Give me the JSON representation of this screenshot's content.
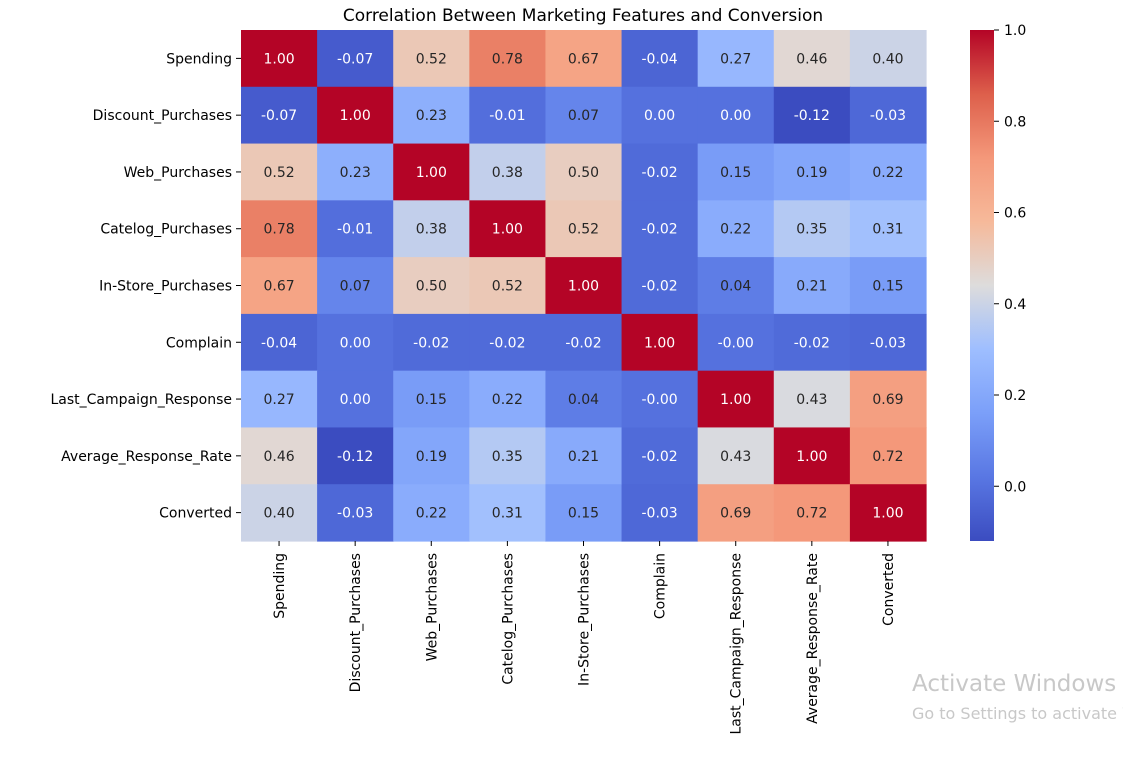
{
  "chart_data": {
    "type": "heatmap",
    "title": "Correlation Between Marketing Features and Conversion",
    "row_labels": [
      "Spending",
      "Discount_Purchases",
      "Web_Purchases",
      "Catelog_Purchases",
      "In-Store_Purchases",
      "Complain",
      "Last_Campaign_Response",
      "Average_Response_Rate",
      "Converted"
    ],
    "col_labels": [
      "Spending",
      "Discount_Purchases",
      "Web_Purchases",
      "Catelog_Purchases",
      "In-Store_Purchases",
      "Complain",
      "Last_Campaign_Response",
      "Average_Response_Rate",
      "Converted"
    ],
    "values": [
      [
        1.0,
        -0.07,
        0.52,
        0.78,
        0.67,
        -0.04,
        0.27,
        0.46,
        0.4
      ],
      [
        -0.07,
        1.0,
        0.23,
        -0.01,
        0.07,
        0.0,
        0.0,
        -0.12,
        -0.03
      ],
      [
        0.52,
        0.23,
        1.0,
        0.38,
        0.5,
        -0.02,
        0.15,
        0.19,
        0.22
      ],
      [
        0.78,
        -0.01,
        0.38,
        1.0,
        0.52,
        -0.02,
        0.22,
        0.35,
        0.31
      ],
      [
        0.67,
        0.07,
        0.5,
        0.52,
        1.0,
        -0.02,
        0.04,
        0.21,
        0.15
      ],
      [
        -0.04,
        0.0,
        -0.02,
        -0.02,
        -0.02,
        1.0,
        -0.0,
        -0.02,
        -0.03
      ],
      [
        0.27,
        0.0,
        0.15,
        0.22,
        0.04,
        -0.0,
        1.0,
        0.43,
        0.69
      ],
      [
        0.46,
        -0.12,
        0.19,
        0.35,
        0.21,
        -0.02,
        0.43,
        1.0,
        0.72
      ],
      [
        0.4,
        -0.03,
        0.22,
        0.31,
        0.15,
        -0.03,
        0.69,
        0.72,
        1.0
      ]
    ],
    "value_labels": [
      [
        "1.00",
        "-0.07",
        "0.52",
        "0.78",
        "0.67",
        "-0.04",
        "0.27",
        "0.46",
        "0.40"
      ],
      [
        "-0.07",
        "1.00",
        "0.23",
        "-0.01",
        "0.07",
        "0.00",
        "0.00",
        "-0.12",
        "-0.03"
      ],
      [
        "0.52",
        "0.23",
        "1.00",
        "0.38",
        "0.50",
        "-0.02",
        "0.15",
        "0.19",
        "0.22"
      ],
      [
        "0.78",
        "-0.01",
        "0.38",
        "1.00",
        "0.52",
        "-0.02",
        "0.22",
        "0.35",
        "0.31"
      ],
      [
        "0.67",
        "0.07",
        "0.50",
        "0.52",
        "1.00",
        "-0.02",
        "0.04",
        "0.21",
        "0.15"
      ],
      [
        "-0.04",
        "0.00",
        "-0.02",
        "-0.02",
        "-0.02",
        "1.00",
        "-0.00",
        "-0.02",
        "-0.03"
      ],
      [
        "0.27",
        "0.00",
        "0.15",
        "0.22",
        "0.04",
        "-0.00",
        "1.00",
        "0.43",
        "0.69"
      ],
      [
        "0.46",
        "-0.12",
        "0.19",
        "0.35",
        "0.21",
        "-0.02",
        "0.43",
        "1.00",
        "0.72"
      ],
      [
        "0.40",
        "-0.03",
        "0.22",
        "0.31",
        "0.15",
        "-0.03",
        "0.69",
        "0.72",
        "1.00"
      ]
    ],
    "colormap": "coolwarm",
    "vmin": -0.12,
    "vmax": 1.0,
    "colorbar_ticks": [
      "0.0",
      "0.2",
      "0.4",
      "0.6",
      "0.8",
      "1.0"
    ],
    "colorbar_tick_values": [
      0.0,
      0.2,
      0.4,
      0.6,
      0.8,
      1.0
    ],
    "annotated": true
  },
  "watermark": {
    "title": "Activate Windows",
    "subtitle": "Go to Settings to activate Windows."
  }
}
